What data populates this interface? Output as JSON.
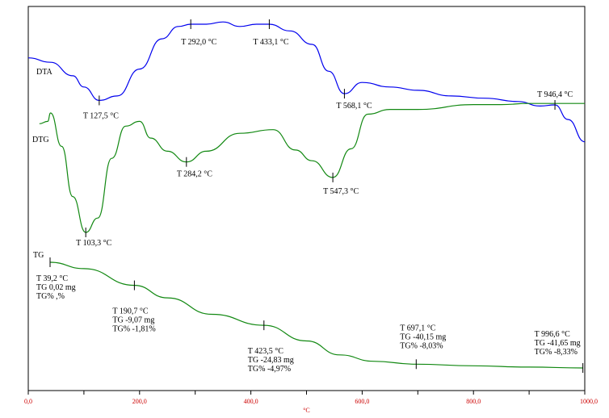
{
  "chart_data": {
    "type": "line",
    "xlabel": "°C",
    "xlim": [
      0,
      1000
    ],
    "x_ticks": [
      "0,0",
      "200,0",
      "400,0",
      "600,0",
      "800,0",
      "1000,0"
    ],
    "grid": false,
    "colors": {
      "DTA": "#0000ee",
      "DTG": "#118811",
      "TG": "#118811",
      "axis": "#000000",
      "ticks": "#cc0000"
    },
    "series": [
      {
        "name": "DTA",
        "x": [
          0,
          40,
          80,
          100,
          127.5,
          160,
          200,
          240,
          270,
          292,
          320,
          350,
          380,
          410,
          433.1,
          470,
          510,
          540,
          568.1,
          600,
          650,
          700,
          760,
          820,
          880,
          920,
          946.4,
          970,
          1000
        ],
        "y": [
          0.7,
          0.66,
          0.54,
          0.44,
          0.32,
          0.36,
          0.6,
          0.87,
          0.98,
          1.0,
          1.0,
          1.02,
          0.98,
          1.0,
          1.0,
          0.94,
          0.82,
          0.58,
          0.38,
          0.48,
          0.44,
          0.41,
          0.36,
          0.34,
          0.31,
          0.27,
          0.28,
          0.15,
          -0.05
        ]
      },
      {
        "name": "DTG",
        "x": [
          20,
          35,
          40,
          60,
          80,
          103.3,
          125,
          150,
          175,
          200,
          220,
          250,
          284.2,
          320,
          380,
          440,
          480,
          510,
          547.3,
          580,
          610,
          650,
          700,
          800,
          850,
          900,
          1000
        ],
        "y": [
          0.91,
          0.93,
          1.0,
          0.72,
          0.3,
          0.0,
          0.12,
          0.62,
          0.89,
          0.93,
          0.79,
          0.68,
          0.59,
          0.68,
          0.83,
          0.86,
          0.69,
          0.6,
          0.46,
          0.7,
          0.99,
          1.03,
          1.03,
          1.07,
          1.07,
          1.08,
          1.08
        ]
      },
      {
        "name": "TG",
        "x": [
          39.2,
          100,
          190.7,
          250,
          330,
          423.5,
          500,
          560,
          620,
          697.1,
          800,
          900,
          996.6
        ],
        "y": [
          0.02,
          -2.5,
          -9.07,
          -14.0,
          -20.5,
          -24.83,
          -31.0,
          -36.5,
          -39.0,
          -40.15,
          -40.8,
          -41.3,
          -41.65
        ]
      }
    ],
    "annotations": [
      {
        "series": "DTA",
        "x": 127.5,
        "lines": [
          "T 127,5 °C"
        ]
      },
      {
        "series": "DTA",
        "x": 292,
        "lines": [
          "T 292,0 °C"
        ]
      },
      {
        "series": "DTA",
        "x": 433.1,
        "lines": [
          "T 433,1 °C"
        ]
      },
      {
        "series": "DTA",
        "x": 568.1,
        "lines": [
          "T 568,1 °C"
        ]
      },
      {
        "series": "DTA",
        "x": 946.4,
        "lines": [
          "T 946,4 °C"
        ]
      },
      {
        "series": "DTG",
        "x": 103.3,
        "lines": [
          "T 103,3 °C"
        ]
      },
      {
        "series": "DTG",
        "x": 284.2,
        "lines": [
          "T 284,2 °C"
        ]
      },
      {
        "series": "DTG",
        "x": 547.3,
        "lines": [
          "T 547,3 °C"
        ]
      },
      {
        "series": "TG",
        "x": 39.2,
        "lines": [
          "T 39,2 °C",
          "TG 0,02 mg",
          "TG% ,%"
        ]
      },
      {
        "series": "TG",
        "x": 190.7,
        "lines": [
          "T 190,7 °C",
          "TG -9,07 mg",
          "TG% -1,81%"
        ]
      },
      {
        "series": "TG",
        "x": 423.5,
        "lines": [
          "T 423,5 °C",
          "TG -24,83 mg",
          "TG% -4,97%"
        ]
      },
      {
        "series": "TG",
        "x": 697.1,
        "lines": [
          "T 697,1 °C",
          "TG -40,15 mg",
          "TG% -8,03%"
        ]
      },
      {
        "series": "TG",
        "x": 996.6,
        "lines": [
          "T 996,6 °C",
          "TG -41,65 mg",
          "TG% -8,33%"
        ]
      }
    ]
  }
}
